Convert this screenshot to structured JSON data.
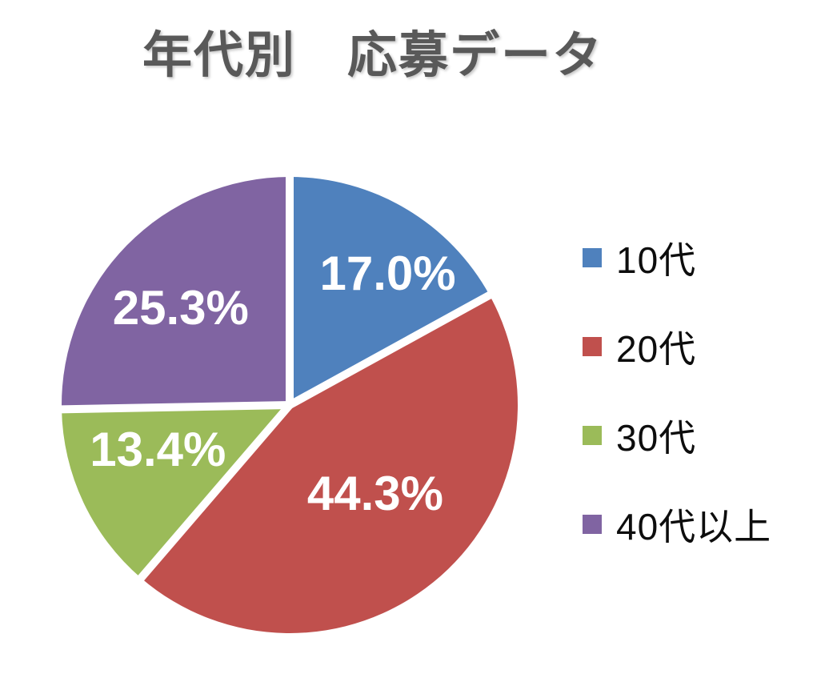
{
  "title": "年代別　応募データ",
  "chart_data": {
    "type": "pie",
    "title": "年代別　応募データ",
    "start_angle_deg": 0,
    "direction": "clockwise",
    "slices": [
      {
        "label": "10代",
        "value": 17.0,
        "display": "17.0%",
        "color": "#4F81BD"
      },
      {
        "label": "20代",
        "value": 44.3,
        "display": "44.3%",
        "color": "#C0504D"
      },
      {
        "label": "30代",
        "value": 13.4,
        "display": "13.4%",
        "color": "#9BBB59"
      },
      {
        "label": "40代以上",
        "value": 25.3,
        "display": "25.3%",
        "color": "#8064A2"
      }
    ],
    "legend_position": "right",
    "separator_color": "#FFFFFF",
    "data_label_color": "#FFFFFF",
    "title_color": "#595959",
    "background": "#FFFFFF"
  }
}
